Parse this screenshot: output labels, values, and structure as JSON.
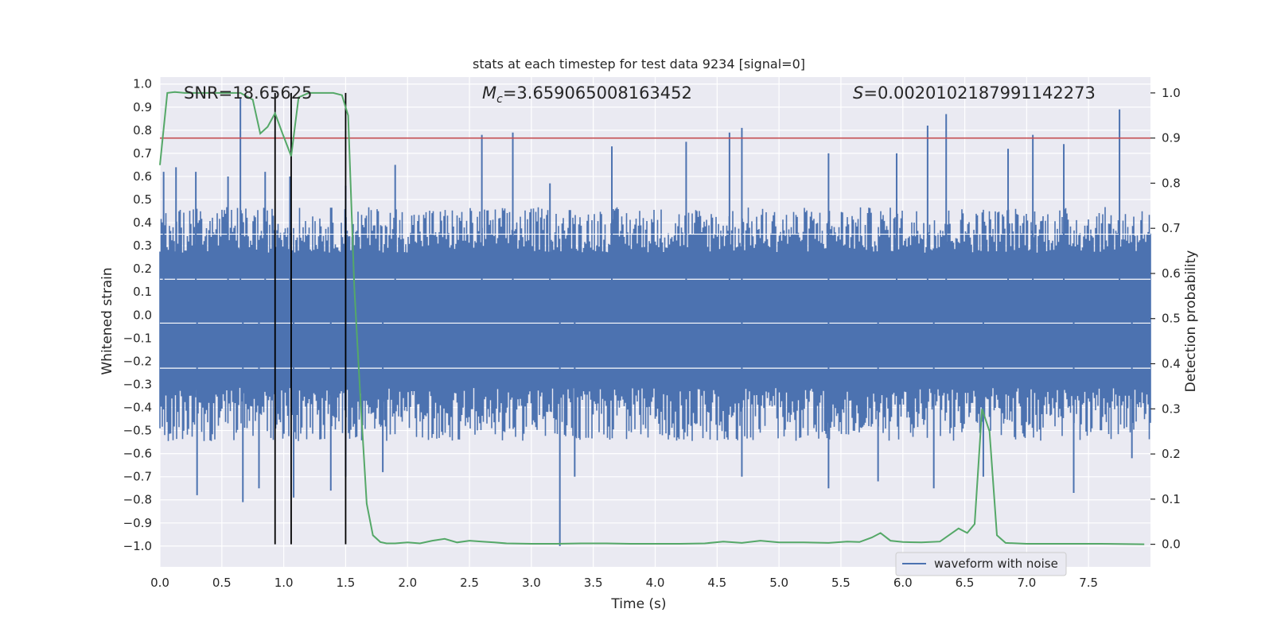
{
  "chart_data": {
    "type": "line",
    "title": "stats at each timestep for test data 9234 [signal=0]",
    "xlabel": "Time (s)",
    "ylabel": "Whitened strain",
    "y2label": "Detection probability",
    "xlim": [
      0.0,
      8.0
    ],
    "ylim": [
      -1.09,
      1.03
    ],
    "y2lim": [
      -0.05,
      1.035
    ],
    "xticks": [
      0.0,
      0.5,
      1.0,
      1.5,
      2.0,
      2.5,
      3.0,
      3.5,
      4.0,
      4.5,
      5.0,
      5.5,
      6.0,
      6.5,
      7.0,
      7.5
    ],
    "yticks": [
      -1.0,
      -0.9,
      -0.8,
      -0.7,
      -0.6,
      -0.5,
      -0.4,
      -0.3,
      -0.2,
      -0.1,
      0.0,
      0.1,
      0.2,
      0.3,
      0.4,
      0.5,
      0.6,
      0.7,
      0.8,
      0.9,
      1.0
    ],
    "y2ticks": [
      0.0,
      0.1,
      0.2,
      0.3,
      0.4,
      0.5,
      0.6,
      0.7,
      0.8,
      0.9,
      1.0
    ],
    "annotations": {
      "snr": "SNR=18.65625",
      "mc_symbol": "M",
      "mc_sub": "c",
      "mc_value": "=3.659065008163452",
      "s_symbol": "S",
      "s_value": "=0.0020102187991142273"
    },
    "threshold": 0.9,
    "vlines": [
      0.93,
      1.06,
      1.5
    ],
    "waveform": {
      "name": "waveform with noise",
      "band_upper": 0.36,
      "band_lower": -0.42,
      "spikes": [
        {
          "x": 0.03,
          "y": 0.62
        },
        {
          "x": 0.13,
          "y": 0.64
        },
        {
          "x": 0.29,
          "y": 0.62
        },
        {
          "x": 0.65,
          "y": 0.94
        },
        {
          "x": 0.55,
          "y": 0.6
        },
        {
          "x": 0.85,
          "y": 0.62
        },
        {
          "x": 1.05,
          "y": 0.6
        },
        {
          "x": 1.5,
          "y": 0.56
        },
        {
          "x": 2.6,
          "y": 0.78
        },
        {
          "x": 2.85,
          "y": 0.79
        },
        {
          "x": 3.65,
          "y": 0.73
        },
        {
          "x": 4.25,
          "y": 0.75
        },
        {
          "x": 4.6,
          "y": 0.79
        },
        {
          "x": 4.7,
          "y": 0.81
        },
        {
          "x": 5.4,
          "y": 0.7
        },
        {
          "x": 6.2,
          "y": 0.82
        },
        {
          "x": 6.35,
          "y": 0.87
        },
        {
          "x": 6.85,
          "y": 0.72
        },
        {
          "x": 7.05,
          "y": 0.78
        },
        {
          "x": 7.3,
          "y": 0.74
        },
        {
          "x": 7.75,
          "y": 0.89
        },
        {
          "x": 5.95,
          "y": 0.7
        },
        {
          "x": 3.15,
          "y": 0.57
        },
        {
          "x": 1.9,
          "y": 0.65
        },
        {
          "x": 0.3,
          "y": -0.78
        },
        {
          "x": 0.67,
          "y": -0.81
        },
        {
          "x": 0.8,
          "y": -0.75
        },
        {
          "x": 1.08,
          "y": -0.79
        },
        {
          "x": 1.38,
          "y": -0.76
        },
        {
          "x": 1.5,
          "y": -0.7
        },
        {
          "x": 1.8,
          "y": -0.68
        },
        {
          "x": 3.23,
          "y": -1.0
        },
        {
          "x": 3.35,
          "y": -0.7
        },
        {
          "x": 4.7,
          "y": -0.7
        },
        {
          "x": 5.4,
          "y": -0.75
        },
        {
          "x": 5.8,
          "y": -0.72
        },
        {
          "x": 6.25,
          "y": -0.75
        },
        {
          "x": 6.65,
          "y": -0.7
        },
        {
          "x": 7.38,
          "y": -0.77
        },
        {
          "x": 7.85,
          "y": -0.62
        }
      ]
    },
    "probability": {
      "x": [
        0.0,
        0.06,
        0.12,
        0.2,
        0.35,
        0.5,
        0.65,
        0.75,
        0.81,
        0.87,
        0.93,
        0.99,
        1.06,
        1.12,
        1.2,
        1.3,
        1.4,
        1.47,
        1.52,
        1.57,
        1.62,
        1.67,
        1.72,
        1.78,
        1.83,
        1.9,
        2.0,
        2.1,
        2.2,
        2.3,
        2.4,
        2.5,
        2.6,
        2.7,
        2.8,
        3.0,
        3.2,
        3.4,
        3.6,
        3.8,
        4.0,
        4.2,
        4.4,
        4.55,
        4.7,
        4.85,
        5.0,
        5.2,
        5.4,
        5.55,
        5.65,
        5.75,
        5.82,
        5.9,
        6.0,
        6.15,
        6.3,
        6.45,
        6.52,
        6.58,
        6.64,
        6.7,
        6.76,
        6.83,
        7.0,
        7.3,
        7.6,
        7.95
      ],
      "y": [
        0.84,
        1.0,
        1.002,
        1.0,
        1.0,
        1.0,
        1.0,
        0.985,
        0.91,
        0.925,
        0.955,
        0.91,
        0.86,
        0.99,
        1.0,
        1.0,
        1.0,
        0.995,
        0.95,
        0.57,
        0.32,
        0.09,
        0.02,
        0.005,
        0.002,
        0.002,
        0.004,
        0.002,
        0.008,
        0.012,
        0.004,
        0.008,
        0.006,
        0.004,
        0.002,
        0.001,
        0.001,
        0.002,
        0.002,
        0.001,
        0.001,
        0.001,
        0.002,
        0.006,
        0.003,
        0.008,
        0.004,
        0.004,
        0.003,
        0.006,
        0.005,
        0.015,
        0.025,
        0.008,
        0.005,
        0.004,
        0.006,
        0.035,
        0.025,
        0.045,
        0.3,
        0.25,
        0.02,
        0.003,
        0.001,
        0.001,
        0.001,
        0.0
      ]
    },
    "colors": {
      "background": "#eaeaf2",
      "grid": "#ffffff",
      "waveform": "#4c72b0",
      "probability": "#55a868",
      "threshold": "#c44e52",
      "vline": "#000000"
    },
    "legend": {
      "entries": [
        "waveform with noise"
      ],
      "position": "lower-right"
    }
  }
}
